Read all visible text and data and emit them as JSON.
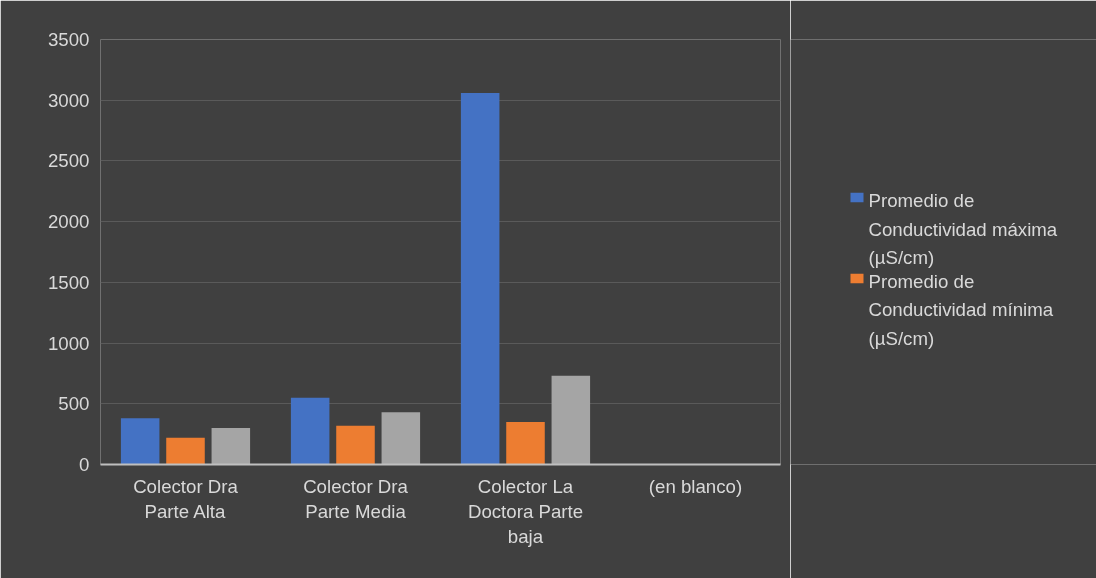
{
  "chart_data": {
    "type": "bar",
    "categories": [
      "Colector Dra Parte Alta",
      "Colector Dra Parte Media",
      "Colector La Doctora Parte baja",
      "(en blanco)"
    ],
    "series": [
      {
        "name": "Promedio de Conductividad máxima (µS/cm)",
        "color": "#4472c4",
        "values": [
          380,
          550,
          3060,
          null
        ]
      },
      {
        "name": "Promedio de Conductividad mínima (µS/cm)",
        "color": "#ed7d31",
        "values": [
          220,
          320,
          350,
          null
        ]
      },
      {
        "color": "#a5a5a5",
        "values": [
          300,
          430,
          730,
          null
        ]
      }
    ],
    "ylim": [
      0,
      3500
    ],
    "yticks": [
      0,
      500,
      1000,
      1500,
      2000,
      2500,
      3000,
      3500
    ],
    "grid": "y",
    "legend": "right"
  }
}
